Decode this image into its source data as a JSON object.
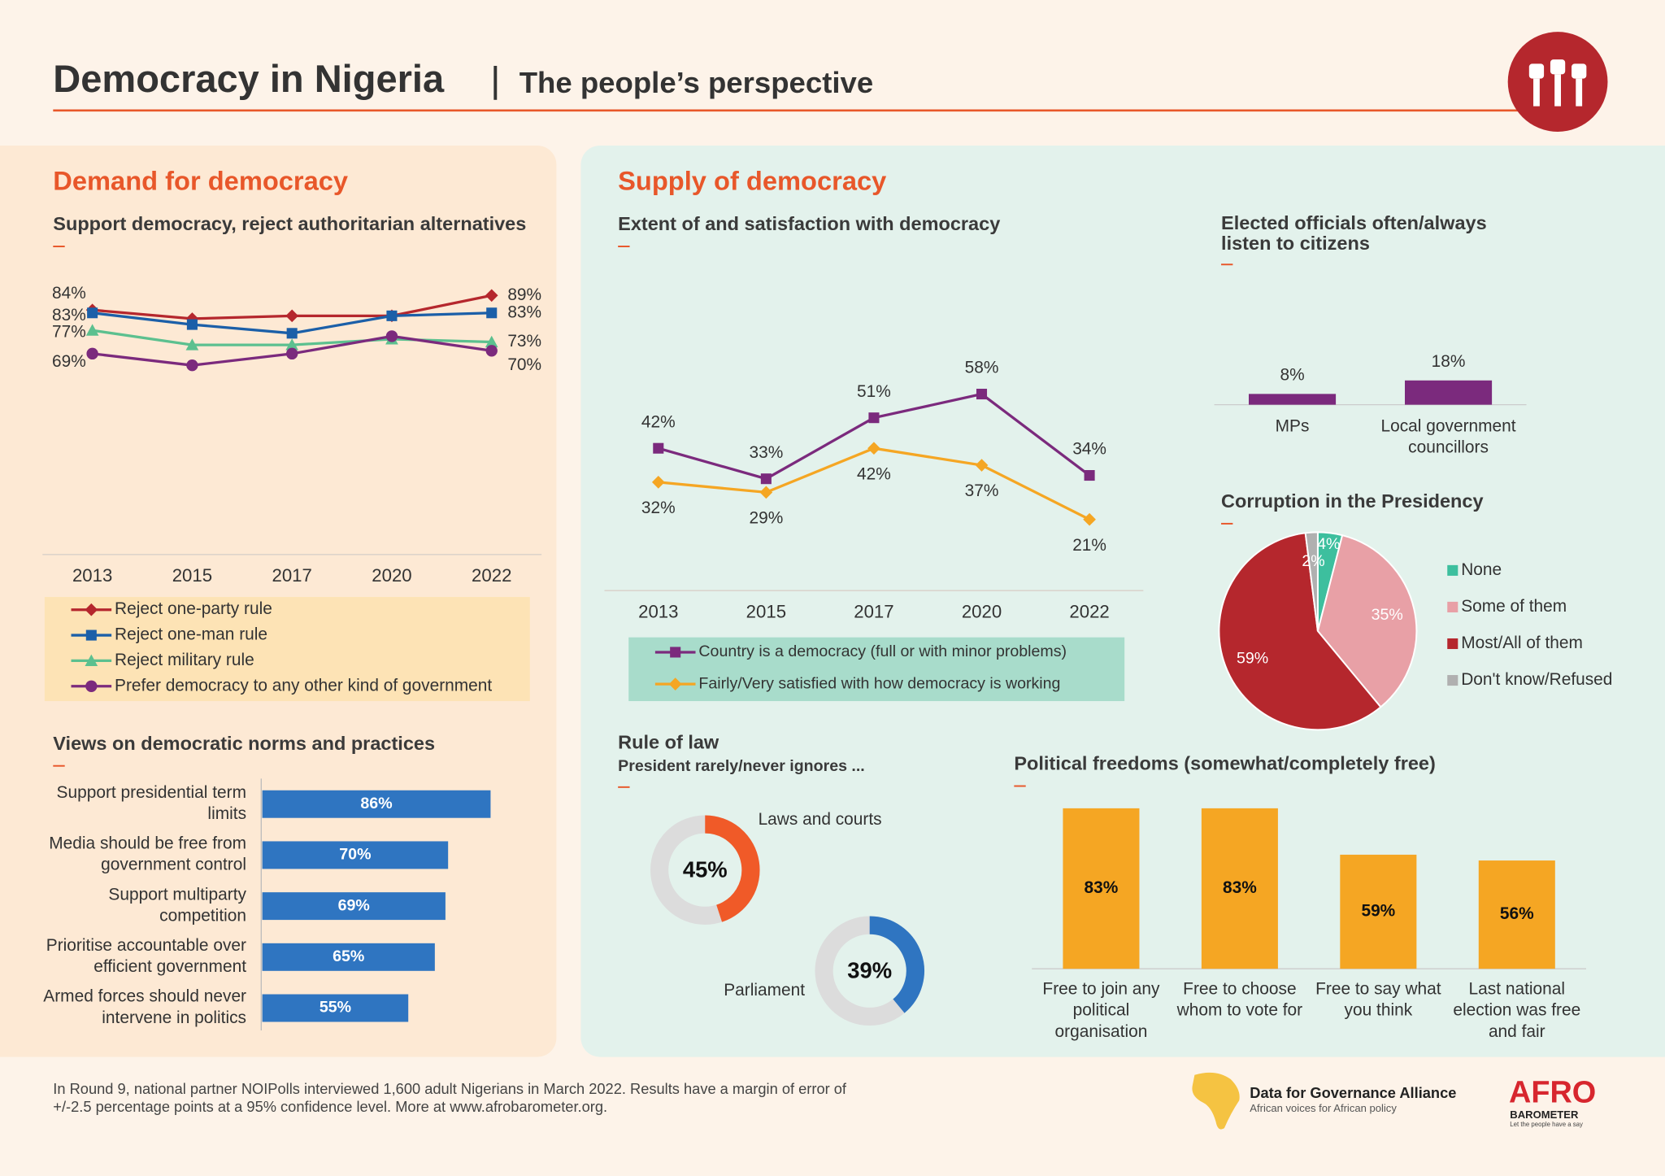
{
  "header": {
    "title": "Democracy in Nigeria",
    "subtitle": "The people’s perspective"
  },
  "sections": {
    "demand": "Demand for democracy",
    "supply": "Supply of democracy"
  },
  "footer": {
    "note": [
      "In Round 9, national partner NOIPolls interviewed 1,600 adult Nigerians in March 2022. Results have a margin of error of",
      "+/-2.5 percentage points at a 95% confidence level. More at www.afrobarometer.org."
    ],
    "partner": "Data for Governance Alliance",
    "partner_tagline": "African voices for African policy",
    "logo": "AFRO",
    "logo_sub": "BAROMETER",
    "logo_tagline": "Let the people have a say"
  },
  "chart_data": [
    {
      "type": "line",
      "title": "Support democracy, reject authoritarian alternatives",
      "categories": [
        "2013",
        "2015",
        "2017",
        "2020",
        "2022"
      ],
      "ylim": [
        0,
        100
      ],
      "series": [
        {
          "name": "Reject one-party rule",
          "color": "#b5272d",
          "marker": "diamond",
          "values": [
            84,
            81,
            82,
            82,
            89
          ],
          "value_labels": [
            "84%",
            null,
            null,
            null,
            "89%"
          ]
        },
        {
          "name": "Reject one-man rule",
          "color": "#1b5fa8",
          "marker": "square",
          "values": [
            83,
            79,
            76,
            82,
            83
          ],
          "value_labels": [
            "83%",
            null,
            null,
            null,
            "83%"
          ]
        },
        {
          "name": "Reject military rule",
          "color": "#5cc08f",
          "marker": "triangle",
          "values": [
            77,
            72,
            72,
            74,
            73
          ],
          "value_labels": [
            "77%",
            null,
            null,
            null,
            "73%"
          ]
        },
        {
          "name": "Prefer democracy to any other kind of government",
          "color": "#7b2a7d",
          "marker": "circle",
          "values": [
            69,
            65,
            69,
            75,
            70
          ],
          "value_labels": [
            "69%",
            null,
            null,
            null,
            "70%"
          ]
        }
      ]
    },
    {
      "type": "line",
      "title": "Extent of and satisfaction with democracy",
      "categories": [
        "2013",
        "2015",
        "2017",
        "2020",
        "2022"
      ],
      "ylim": [
        0,
        100
      ],
      "series": [
        {
          "name": "Country is a democracy (full or with minor problems)",
          "color": "#7b2a7d",
          "marker": "square",
          "values": [
            42,
            33,
            51,
            58,
            34
          ],
          "value_labels": [
            "42%",
            "33%",
            "51%",
            "58%",
            "34%"
          ]
        },
        {
          "name": "Fairly/Very satisfied with how democracy is working",
          "color": "#f5a623",
          "marker": "diamond",
          "values": [
            32,
            29,
            42,
            37,
            21
          ],
          "value_labels": [
            "32%",
            "29%",
            "42%",
            "37%",
            "21%"
          ]
        }
      ]
    },
    {
      "type": "hbar",
      "title": "Views on democratic norms and practices",
      "categories": [
        "Support presidential term limits",
        "Media should be free from government control",
        "Support multiparty competition",
        "Prioritise accountable over efficient government",
        "Armed forces should never intervene in politics"
      ],
      "values": [
        86,
        70,
        69,
        65,
        55
      ],
      "value_labels": [
        "86%",
        "70%",
        "69%",
        "65%",
        "55%"
      ],
      "color": "#2f75c1",
      "xlim": [
        0,
        100
      ]
    },
    {
      "type": "bar",
      "title": "Elected officials often/always listen to citizens",
      "categories": [
        "MPs",
        "Local government councillors"
      ],
      "values": [
        8,
        18
      ],
      "value_labels": [
        "8%",
        "18%"
      ],
      "color": "#7b2a7d",
      "ylim": [
        0,
        100
      ]
    },
    {
      "type": "pie",
      "title": "Corruption in the Presidency",
      "categories": [
        "None",
        "Some of them",
        "Most/All of them",
        "Don't know/Refused"
      ],
      "values": [
        4,
        35,
        59,
        2
      ],
      "value_labels": [
        "4%",
        "35%",
        "59%",
        "2%"
      ],
      "colors": [
        "#3dbf9e",
        "#e8a0a6",
        "#b5272d",
        "#b0b0b0"
      ]
    },
    {
      "type": "donut",
      "title": "Rule of law",
      "subtitle": "President rarely/never ignores ...",
      "categories": [
        "Laws and courts",
        "Parliament"
      ],
      "values": [
        45,
        39
      ],
      "value_labels": [
        "45%",
        "39%"
      ],
      "colors": [
        "#f05a28",
        "#2f75c1"
      ],
      "ylim": [
        0,
        100
      ]
    },
    {
      "type": "bar",
      "title": "Political freedoms (somewhat/completely free)",
      "categories": [
        "Free to join any political organisation",
        "Free to choose whom to vote for",
        "Free to say what you think",
        "Last national election was free and fair"
      ],
      "values": [
        83,
        83,
        59,
        56
      ],
      "value_labels": [
        "83%",
        "83%",
        "59%",
        "56%"
      ],
      "color": "#f5a623",
      "ylim": [
        0,
        100
      ]
    }
  ]
}
